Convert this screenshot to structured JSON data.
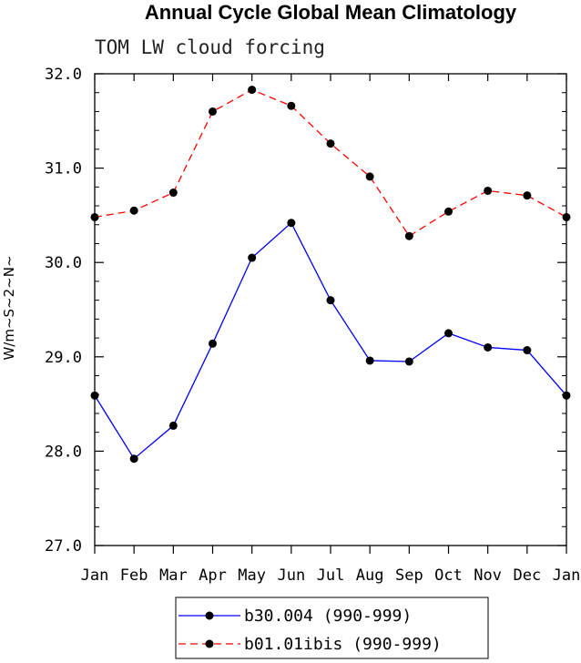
{
  "chart_data": {
    "type": "line",
    "title": "Annual Cycle Global Mean Climatology",
    "subtitle": "TOM LW cloud forcing",
    "ylabel": "W/m~S~2~N~",
    "xlabel": "",
    "categories": [
      "Jan",
      "Feb",
      "Mar",
      "Apr",
      "May",
      "Jun",
      "Jul",
      "Aug",
      "Sep",
      "Oct",
      "Nov",
      "Dec",
      "Jan"
    ],
    "ylim": [
      27.0,
      32.0
    ],
    "yticks": [
      "27.0",
      "28.0",
      "29.0",
      "30.0",
      "31.0",
      "32.0"
    ],
    "series": [
      {
        "name": "b30.004 (990-999)",
        "color": "#0000ff",
        "dash": "solid",
        "values": [
          28.59,
          27.92,
          28.27,
          29.14,
          30.05,
          30.42,
          29.6,
          28.96,
          28.95,
          29.25,
          29.1,
          29.07,
          28.59
        ]
      },
      {
        "name": "b01.01ibis (990-999)",
        "color": "#ff0000",
        "dash": "dashed",
        "values": [
          30.48,
          30.55,
          30.74,
          31.6,
          31.83,
          31.66,
          31.26,
          30.91,
          30.28,
          30.54,
          30.76,
          30.71,
          30.48
        ]
      }
    ],
    "grid": false,
    "legend": "bottom"
  }
}
